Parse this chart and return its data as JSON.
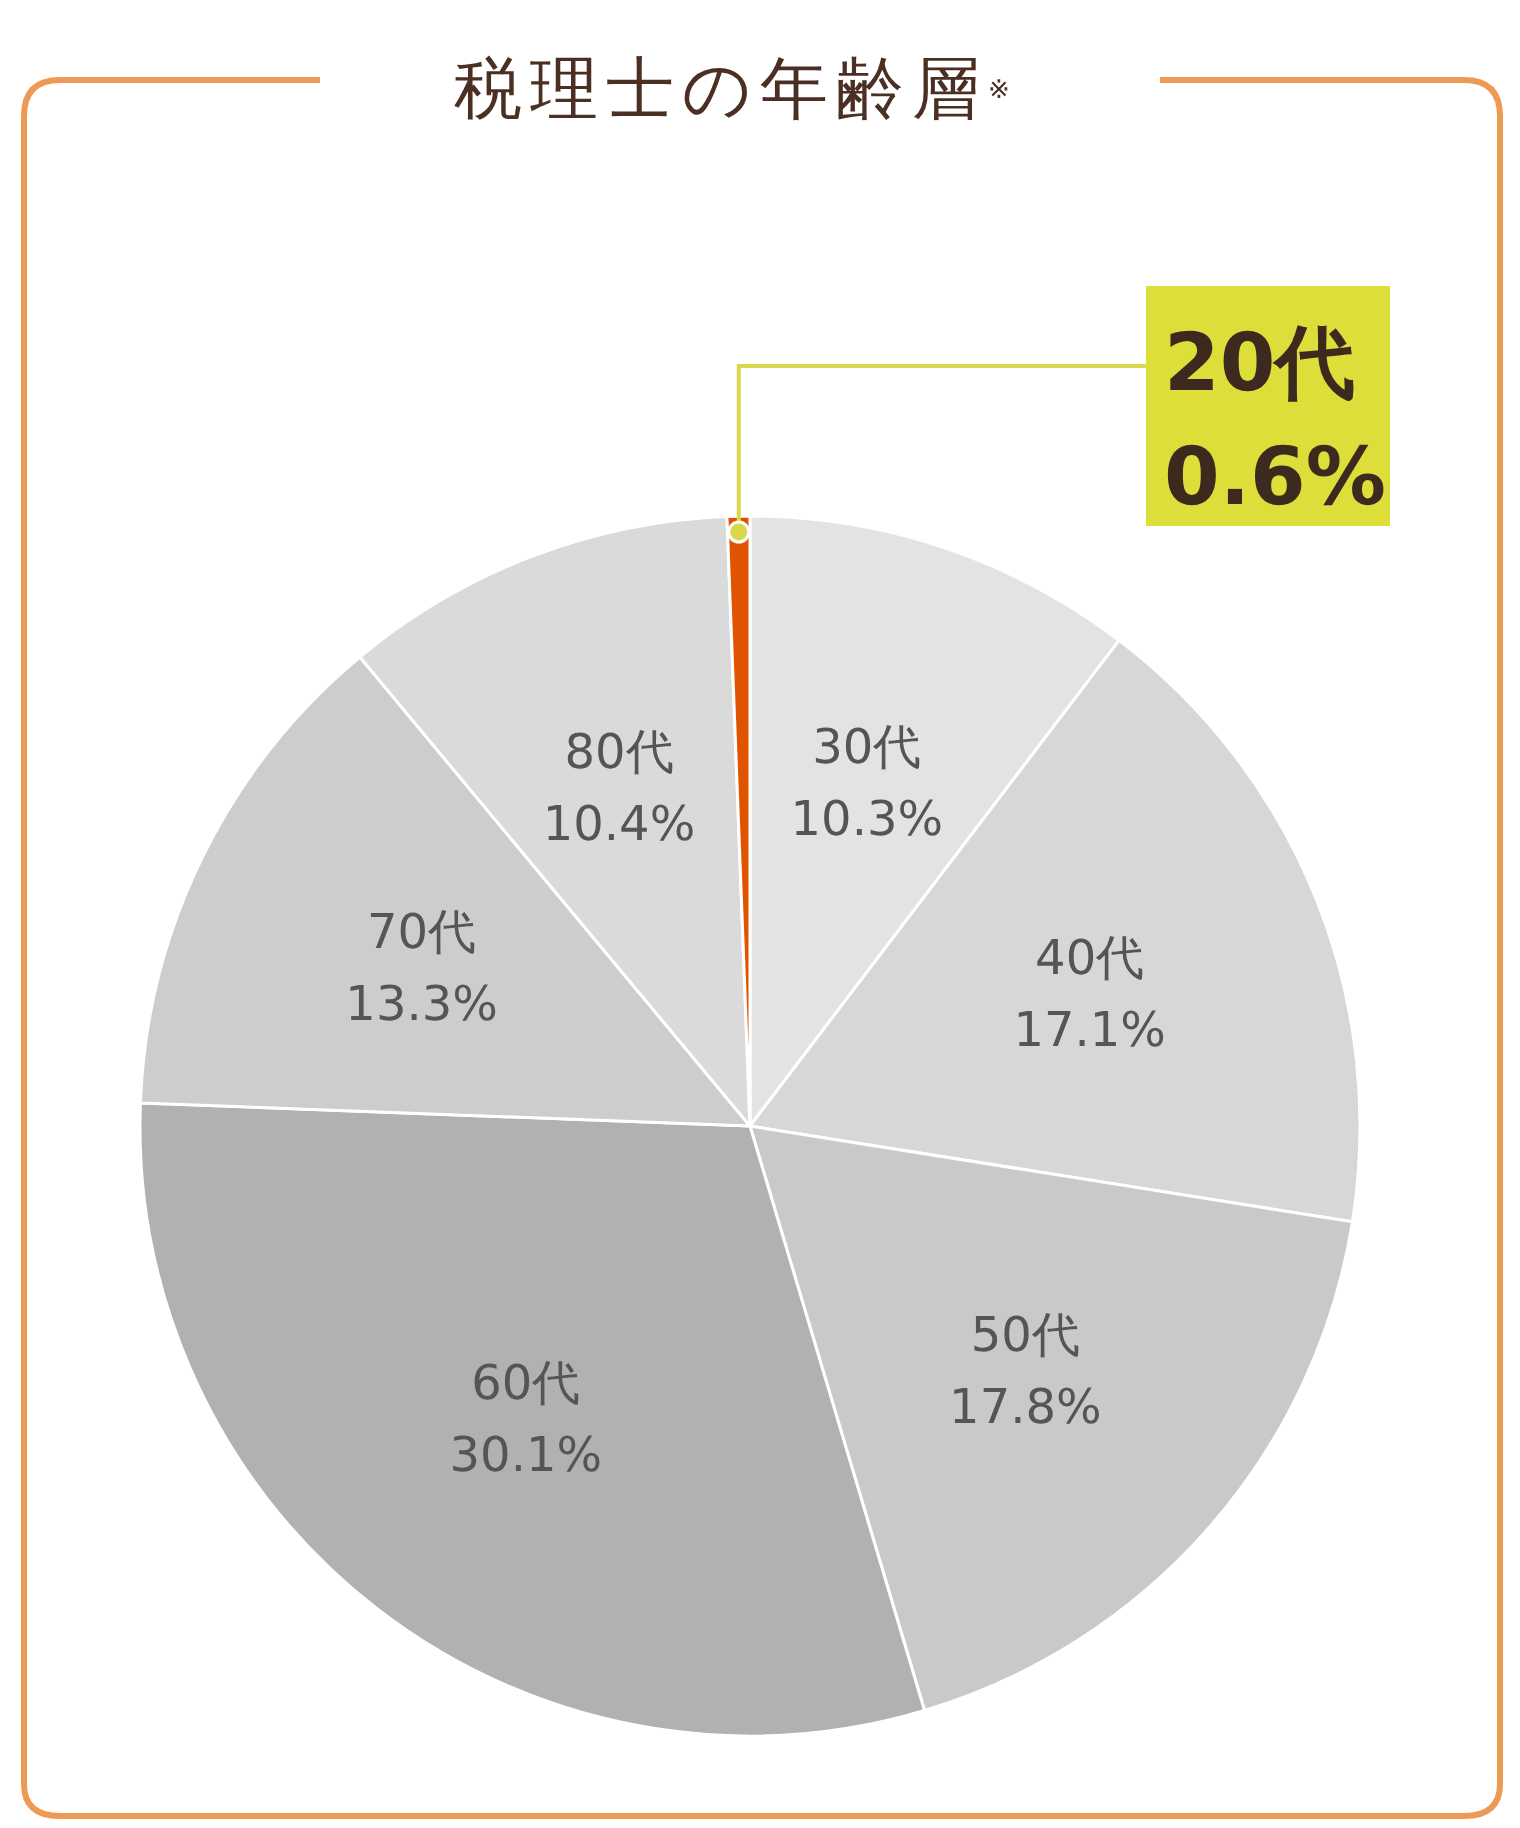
{
  "chart_data": {
    "type": "pie",
    "title": "税理士の年齢層$^{※}$",
    "categories": [
      "30代",
      "40代",
      "50代",
      "60代",
      "70代",
      "80代",
      "20代"
    ],
    "values": [
      10.3,
      17.1,
      17.8,
      30.1,
      13.3,
      10.4,
      0.6
    ],
    "colors": [
      "#e3e3e3",
      "#d7d7d7",
      "#c9c9c9",
      "#b1b1b1",
      "#cdcdcd",
      "#dadada",
      "#e05400"
    ],
    "value_labels": [
      "10.3%",
      "17.1%",
      "17.8%",
      "30.1%",
      "13.3%",
      "10.4%",
      "0.6%"
    ]
  }
}
